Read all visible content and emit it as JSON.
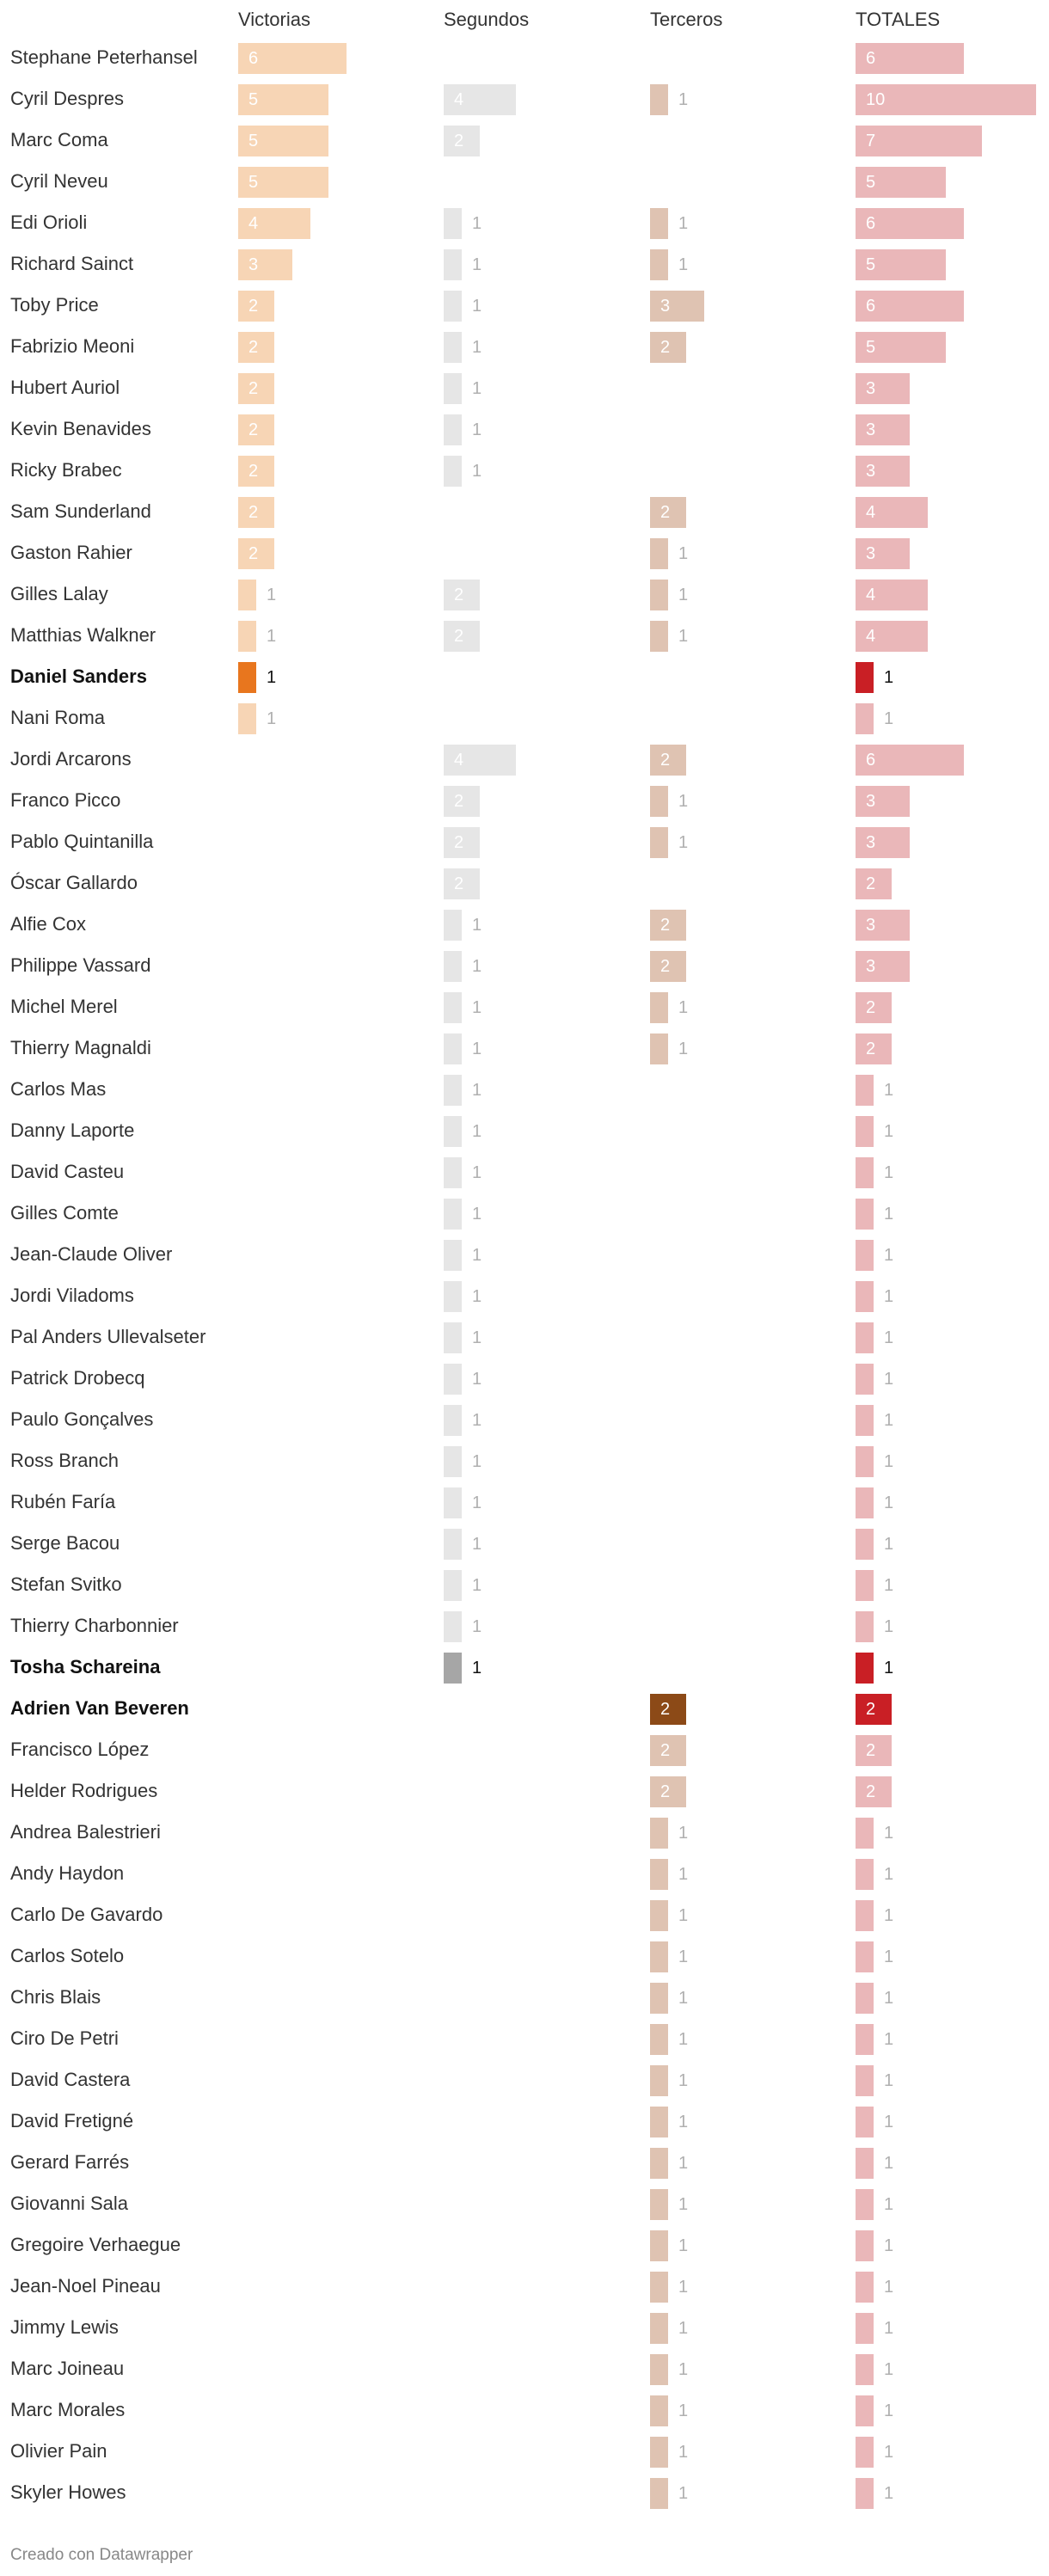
{
  "chart_data": {
    "type": "table",
    "columns": [
      {
        "key": "victorias",
        "label": "Victorias",
        "color": "#f7d5b5",
        "highlight_color": "#e8761e"
      },
      {
        "key": "segundos",
        "label": "Segundos",
        "color": "#e6e6e6",
        "highlight_color": "#a6a6a6"
      },
      {
        "key": "terceros",
        "label": "Terceros",
        "color": "#dfc3b2",
        "highlight_color": "#8c4a17"
      },
      {
        "key": "totales",
        "label": "TOTALES",
        "color": "#eab7b9",
        "highlight_color": "#c91f25"
      }
    ],
    "rows": [
      {
        "name": "Stephane Peterhansel",
        "victorias": 6,
        "segundos": null,
        "terceros": null,
        "totales": 6
      },
      {
        "name": "Cyril Despres",
        "victorias": 5,
        "segundos": 4,
        "terceros": 1,
        "totales": 10
      },
      {
        "name": "Marc Coma",
        "victorias": 5,
        "segundos": 2,
        "terceros": null,
        "totales": 7
      },
      {
        "name": "Cyril Neveu",
        "victorias": 5,
        "segundos": null,
        "terceros": null,
        "totales": 5
      },
      {
        "name": "Edi Orioli",
        "victorias": 4,
        "segundos": 1,
        "terceros": 1,
        "totales": 6
      },
      {
        "name": "Richard Sainct",
        "victorias": 3,
        "segundos": 1,
        "terceros": 1,
        "totales": 5
      },
      {
        "name": "Toby Price",
        "victorias": 2,
        "segundos": 1,
        "terceros": 3,
        "totales": 6
      },
      {
        "name": "Fabrizio Meoni",
        "victorias": 2,
        "segundos": 1,
        "terceros": 2,
        "totales": 5
      },
      {
        "name": "Hubert Auriol",
        "victorias": 2,
        "segundos": 1,
        "terceros": null,
        "totales": 3
      },
      {
        "name": "Kevin Benavides",
        "victorias": 2,
        "segundos": 1,
        "terceros": null,
        "totales": 3
      },
      {
        "name": "Ricky Brabec",
        "victorias": 2,
        "segundos": 1,
        "terceros": null,
        "totales": 3
      },
      {
        "name": "Sam Sunderland",
        "victorias": 2,
        "segundos": null,
        "terceros": 2,
        "totales": 4
      },
      {
        "name": "Gaston Rahier",
        "victorias": 2,
        "segundos": null,
        "terceros": 1,
        "totales": 3
      },
      {
        "name": "Gilles Lalay",
        "victorias": 1,
        "segundos": 2,
        "terceros": 1,
        "totales": 4
      },
      {
        "name": "Matthias Walkner",
        "victorias": 1,
        "segundos": 2,
        "terceros": 1,
        "totales": 4
      },
      {
        "name": "Daniel Sanders",
        "bold": true,
        "victorias": 1,
        "segundos": null,
        "terceros": null,
        "totales": 1
      },
      {
        "name": "Nani Roma",
        "victorias": 1,
        "segundos": null,
        "terceros": null,
        "totales": 1
      },
      {
        "name": "Jordi Arcarons",
        "victorias": null,
        "segundos": 4,
        "terceros": 2,
        "totales": 6
      },
      {
        "name": "Franco Picco",
        "victorias": null,
        "segundos": 2,
        "terceros": 1,
        "totales": 3
      },
      {
        "name": "Pablo Quintanilla",
        "victorias": null,
        "segundos": 2,
        "terceros": 1,
        "totales": 3
      },
      {
        "name": "Óscar Gallardo",
        "victorias": null,
        "segundos": 2,
        "terceros": null,
        "totales": 2
      },
      {
        "name": "Alfie Cox",
        "victorias": null,
        "segundos": 1,
        "terceros": 2,
        "totales": 3
      },
      {
        "name": "Philippe Vassard",
        "victorias": null,
        "segundos": 1,
        "terceros": 2,
        "totales": 3
      },
      {
        "name": "Michel Merel",
        "victorias": null,
        "segundos": 1,
        "terceros": 1,
        "totales": 2
      },
      {
        "name": "Thierry Magnaldi",
        "victorias": null,
        "segundos": 1,
        "terceros": 1,
        "totales": 2
      },
      {
        "name": "Carlos Mas",
        "victorias": null,
        "segundos": 1,
        "terceros": null,
        "totales": 1
      },
      {
        "name": "Danny Laporte",
        "victorias": null,
        "segundos": 1,
        "terceros": null,
        "totales": 1
      },
      {
        "name": "David Casteu",
        "victorias": null,
        "segundos": 1,
        "terceros": null,
        "totales": 1
      },
      {
        "name": "Gilles Comte",
        "victorias": null,
        "segundos": 1,
        "terceros": null,
        "totales": 1
      },
      {
        "name": "Jean-Claude Oliver",
        "victorias": null,
        "segundos": 1,
        "terceros": null,
        "totales": 1
      },
      {
        "name": "Jordi Viladoms",
        "victorias": null,
        "segundos": 1,
        "terceros": null,
        "totales": 1
      },
      {
        "name": "Pal Anders Ullevalseter",
        "victorias": null,
        "segundos": 1,
        "terceros": null,
        "totales": 1
      },
      {
        "name": "Patrick Drobecq",
        "victorias": null,
        "segundos": 1,
        "terceros": null,
        "totales": 1
      },
      {
        "name": "Paulo Gonçalves",
        "victorias": null,
        "segundos": 1,
        "terceros": null,
        "totales": 1
      },
      {
        "name": "Ross Branch",
        "victorias": null,
        "segundos": 1,
        "terceros": null,
        "totales": 1
      },
      {
        "name": "Rubén Faría",
        "victorias": null,
        "segundos": 1,
        "terceros": null,
        "totales": 1
      },
      {
        "name": "Serge Bacou",
        "victorias": null,
        "segundos": 1,
        "terceros": null,
        "totales": 1
      },
      {
        "name": "Stefan Svitko",
        "victorias": null,
        "segundos": 1,
        "terceros": null,
        "totales": 1
      },
      {
        "name": "Thierry Charbonnier",
        "victorias": null,
        "segundos": 1,
        "terceros": null,
        "totales": 1
      },
      {
        "name": "Tosha Schareina",
        "bold": true,
        "victorias": null,
        "segundos": 1,
        "terceros": null,
        "totales": 1
      },
      {
        "name": "Adrien Van Beveren",
        "bold": true,
        "victorias": null,
        "segundos": null,
        "terceros": 2,
        "totales": 2
      },
      {
        "name": "Francisco López",
        "victorias": null,
        "segundos": null,
        "terceros": 2,
        "totales": 2
      },
      {
        "name": "Helder Rodrigues",
        "victorias": null,
        "segundos": null,
        "terceros": 2,
        "totales": 2
      },
      {
        "name": "Andrea Balestrieri",
        "victorias": null,
        "segundos": null,
        "terceros": 1,
        "totales": 1
      },
      {
        "name": "Andy Haydon",
        "victorias": null,
        "segundos": null,
        "terceros": 1,
        "totales": 1
      },
      {
        "name": "Carlo De Gavardo",
        "victorias": null,
        "segundos": null,
        "terceros": 1,
        "totales": 1
      },
      {
        "name": "Carlos Sotelo",
        "victorias": null,
        "segundos": null,
        "terceros": 1,
        "totales": 1
      },
      {
        "name": "Chris Blais",
        "victorias": null,
        "segundos": null,
        "terceros": 1,
        "totales": 1
      },
      {
        "name": "Ciro De Petri",
        "victorias": null,
        "segundos": null,
        "terceros": 1,
        "totales": 1
      },
      {
        "name": "David Castera",
        "victorias": null,
        "segundos": null,
        "terceros": 1,
        "totales": 1
      },
      {
        "name": "David Fretigné",
        "victorias": null,
        "segundos": null,
        "terceros": 1,
        "totales": 1
      },
      {
        "name": "Gerard Farrés",
        "victorias": null,
        "segundos": null,
        "terceros": 1,
        "totales": 1
      },
      {
        "name": "Giovanni Sala",
        "victorias": null,
        "segundos": null,
        "terceros": 1,
        "totales": 1
      },
      {
        "name": "Gregoire Verhaegue",
        "victorias": null,
        "segundos": null,
        "terceros": 1,
        "totales": 1
      },
      {
        "name": "Jean-Noel Pineau",
        "victorias": null,
        "segundos": null,
        "terceros": 1,
        "totales": 1
      },
      {
        "name": "Jimmy Lewis",
        "victorias": null,
        "segundos": null,
        "terceros": 1,
        "totales": 1
      },
      {
        "name": "Marc Joineau",
        "victorias": null,
        "segundos": null,
        "terceros": 1,
        "totales": 1
      },
      {
        "name": "Marc Morales",
        "victorias": null,
        "segundos": null,
        "terceros": 1,
        "totales": 1
      },
      {
        "name": "Olivier Pain",
        "victorias": null,
        "segundos": null,
        "terceros": 1,
        "totales": 1
      },
      {
        "name": "Skyler Howes",
        "victorias": null,
        "segundos": null,
        "terceros": 1,
        "totales": 1
      }
    ],
    "footer": "Creado con Datawrapper"
  }
}
